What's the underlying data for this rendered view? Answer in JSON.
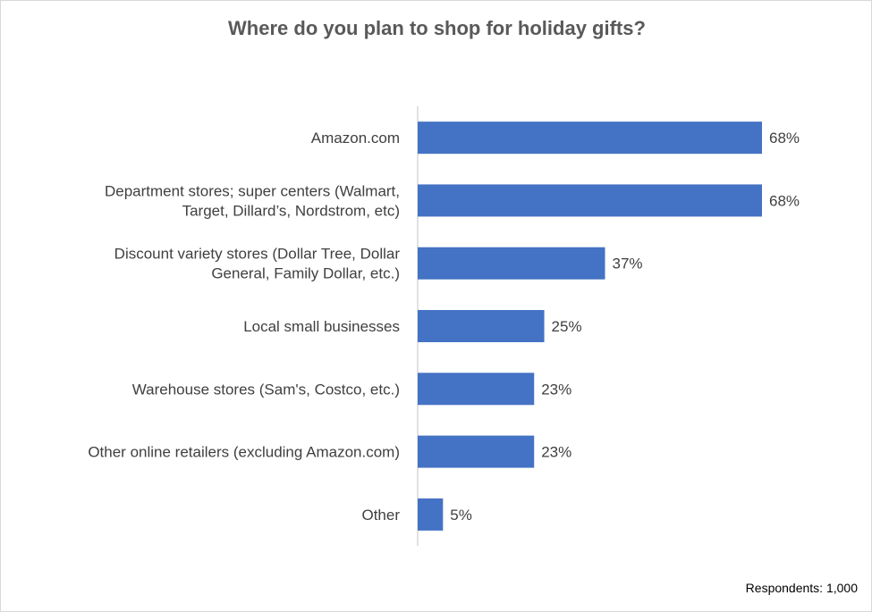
{
  "chart_data": {
    "type": "bar",
    "orientation": "horizontal",
    "title": "Where do you plan to shop for holiday gifts?",
    "categories": [
      [
        "Amazon.com"
      ],
      [
        "Department stores; super centers (Walmart,",
        "Target, Dillard’s, Nordstrom, etc)"
      ],
      [
        "Discount variety stores (Dollar Tree, Dollar",
        "General, Family Dollar, etc.)"
      ],
      [
        "Local small businesses"
      ],
      [
        "Warehouse stores (Sam's, Costco, etc.)"
      ],
      [
        "Other online retailers (excluding Amazon.com)"
      ],
      [
        "Other"
      ]
    ],
    "values": [
      68,
      68,
      37,
      25,
      23,
      23,
      5
    ],
    "value_labels": [
      "68%",
      "68%",
      "37%",
      "25%",
      "23%",
      "23%",
      "5%"
    ],
    "xlim": [
      0,
      100
    ],
    "grid": false,
    "bar_color": "#4472c4",
    "axis_color": "#d9d9d9",
    "footnote": "Respondents: 1,000"
  }
}
